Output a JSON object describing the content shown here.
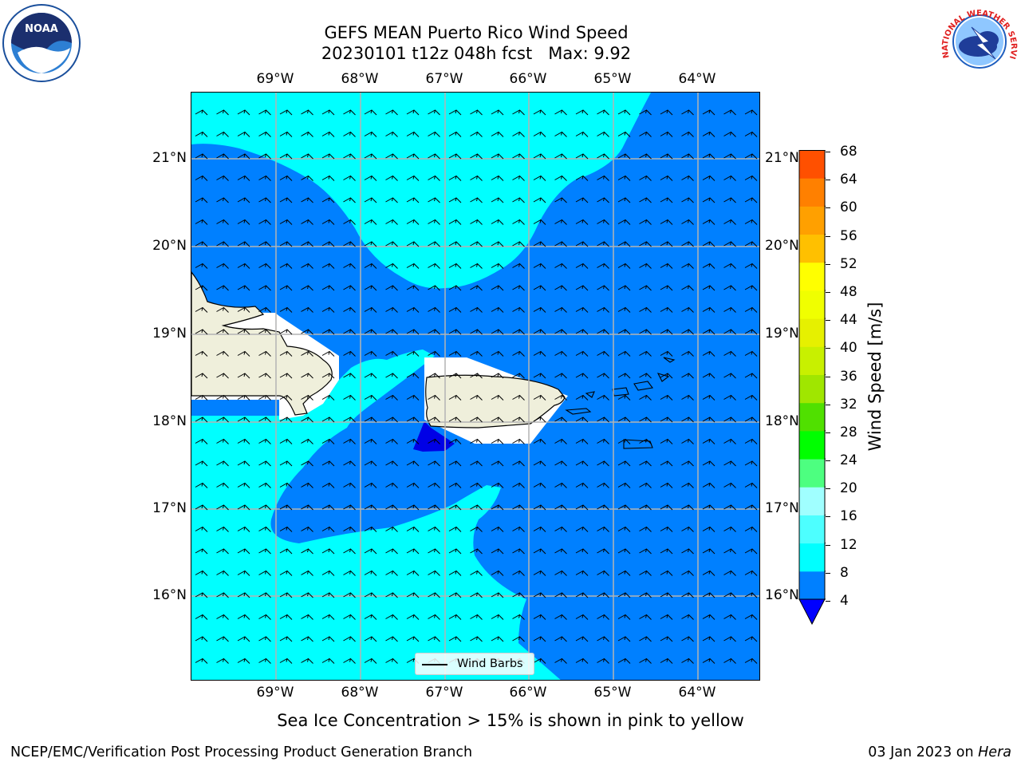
{
  "title": {
    "line1": "GEFS MEAN Puerto Rico Wind Speed",
    "line2": "20230101 t12z 048h fcst   Max: 9.92"
  },
  "map": {
    "lon_labels": [
      "69°W",
      "68°W",
      "67°W",
      "66°W",
      "65°W",
      "64°W"
    ],
    "lat_labels": [
      "21°N",
      "20°N",
      "19°N",
      "18°N",
      "17°N",
      "16°N"
    ],
    "colors": {
      "level_4_8": "#0080ff",
      "level_8_12": "#00ffff",
      "below_4": "#0000e6",
      "land": "#efefdb",
      "masked": "#ffffff",
      "grid": "#b4b4b4"
    },
    "legend_label": "Wind Barbs"
  },
  "colorbar": {
    "title": "Wind Speed [m/s]",
    "ticks": [
      "68",
      "64",
      "60",
      "56",
      "52",
      "48",
      "44",
      "40",
      "36",
      "32",
      "28",
      "24",
      "20",
      "16",
      "12",
      "8",
      "4"
    ],
    "colors_bottom_to_top": [
      "#0080ff",
      "#00ffff",
      "#4dffff",
      "#a0ffff",
      "#4dff80",
      "#00ff00",
      "#50e000",
      "#a0e600",
      "#c8f000",
      "#e6f000",
      "#f0ff00",
      "#ffff00",
      "#ffc000",
      "#ffa000",
      "#ff8000",
      "#ff5000",
      "#ff2000",
      "#ff0000"
    ],
    "under_color": "#0000ff"
  },
  "note": "Sea Ice Concentration > 15% is shown in pink to yellow",
  "footer": {
    "left": "NCEP/EMC/Verification Post Processing Product Generation Branch",
    "right_prefix": "03 Jan 2023 on ",
    "right_host": "Hera"
  },
  "logos": {
    "noaa_text": "NOAA",
    "nws_text": "NATIONAL WEATHER SERVICE"
  }
}
